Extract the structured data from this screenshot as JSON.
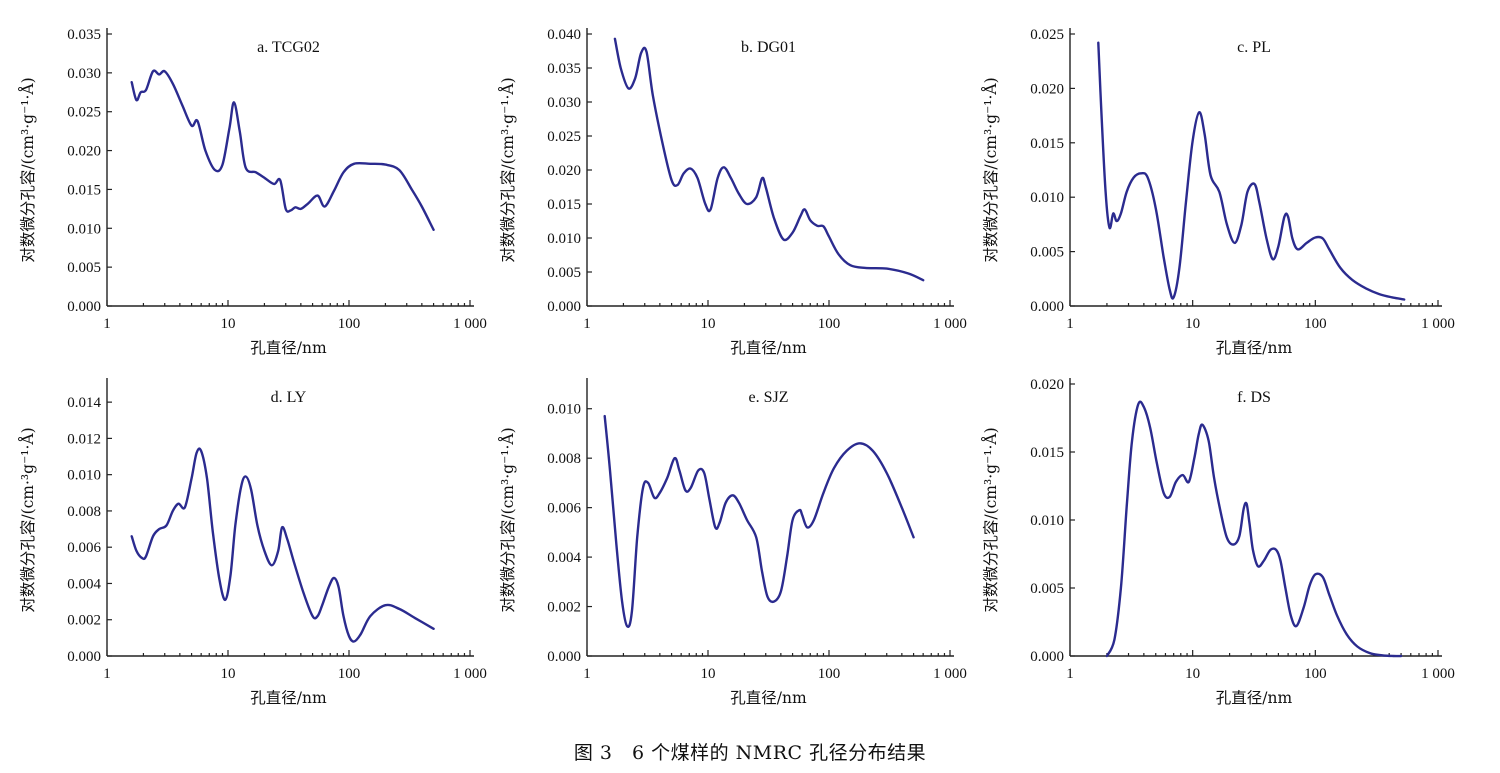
{
  "caption": "图 3　6 个煤样的 NMRC 孔径分布结果",
  "chart_data": [
    {
      "type": "line",
      "title": "a. TCG02",
      "xlabel": "孔直径/nm",
      "ylabel": "对数微分孔容/(cm³·g⁻¹·Å)",
      "xscale": "log",
      "xlim": [
        1,
        1000
      ],
      "xticks": [
        1,
        10,
        100,
        1000
      ],
      "xticklabels": [
        "1",
        "10",
        "100",
        "1 000"
      ],
      "ylim": [
        0,
        0.035
      ],
      "yticks": [
        0,
        0.005,
        0.01,
        0.015,
        0.02,
        0.025,
        0.03,
        0.035
      ],
      "yticklabels": [
        "0.000",
        "0.005",
        "0.010",
        "0.015",
        "0.020",
        "0.025",
        "0.030",
        "0.035"
      ],
      "series": [
        {
          "name": "TCG02",
          "x": [
            1.6,
            1.75,
            1.9,
            2.1,
            2.4,
            2.7,
            3.0,
            3.5,
            4.2,
            5.0,
            5.6,
            6.5,
            7.8,
            9.0,
            10.3,
            11.2,
            12.5,
            14,
            17,
            20,
            24,
            27,
            30,
            33,
            36,
            40,
            46,
            55,
            63,
            75,
            90,
            110,
            150,
            200,
            260,
            330,
            400,
            500
          ],
          "y": [
            0.0288,
            0.0265,
            0.0275,
            0.0278,
            0.0302,
            0.0298,
            0.0302,
            0.0286,
            0.0258,
            0.0232,
            0.0238,
            0.02,
            0.0175,
            0.0182,
            0.023,
            0.0262,
            0.0225,
            0.0178,
            0.0172,
            0.0165,
            0.0157,
            0.0162,
            0.0125,
            0.0123,
            0.0127,
            0.0125,
            0.0132,
            0.0142,
            0.0128,
            0.0148,
            0.0172,
            0.0183,
            0.0183,
            0.0182,
            0.0175,
            0.015,
            0.0128,
            0.0098
          ]
        }
      ]
    },
    {
      "type": "line",
      "title": "b. DG01",
      "xlabel": "孔直径/nm",
      "ylabel": "对数微分孔容/(cm³·g⁻¹·Å)",
      "xscale": "log",
      "xlim": [
        1,
        1000
      ],
      "xticks": [
        1,
        10,
        100,
        1000
      ],
      "xticklabels": [
        "1",
        "10",
        "100",
        "1 000"
      ],
      "ylim": [
        0,
        0.04
      ],
      "yticks": [
        0,
        0.005,
        0.01,
        0.015,
        0.02,
        0.025,
        0.03,
        0.035,
        0.04
      ],
      "yticklabels": [
        "0.000",
        "0.005",
        "0.010",
        "0.015",
        "0.020",
        "0.025",
        "0.030",
        "0.035",
        "0.040"
      ],
      "series": [
        {
          "name": "DG01",
          "x": [
            1.7,
            1.9,
            2.2,
            2.5,
            2.8,
            3.1,
            3.5,
            4.2,
            5.0,
            5.6,
            6.3,
            7.2,
            8.2,
            9.5,
            10.5,
            12,
            13.5,
            15.5,
            18,
            21,
            25,
            28,
            30,
            35,
            42,
            50,
            58,
            63,
            70,
            80,
            90,
            100,
            120,
            150,
            200,
            300,
            450,
            600
          ],
          "y": [
            0.0393,
            0.035,
            0.032,
            0.0335,
            0.0372,
            0.0374,
            0.031,
            0.024,
            0.0185,
            0.0178,
            0.0195,
            0.0202,
            0.0188,
            0.015,
            0.0142,
            0.0188,
            0.0204,
            0.0188,
            0.0165,
            0.015,
            0.016,
            0.0188,
            0.0175,
            0.013,
            0.0098,
            0.0108,
            0.0132,
            0.0142,
            0.0126,
            0.0118,
            0.0117,
            0.0102,
            0.0076,
            0.006,
            0.0056,
            0.0055,
            0.0048,
            0.0038
          ]
        }
      ]
    },
    {
      "type": "line",
      "title": "c. PL",
      "xlabel": "孔直径/nm",
      "ylabel": "对数微分孔容/(cm³·g⁻¹·Å)",
      "xscale": "log",
      "xlim": [
        1,
        1000
      ],
      "xticks": [
        1,
        10,
        100,
        1000
      ],
      "xticklabels": [
        "1",
        "10",
        "100",
        "1 000"
      ],
      "ylim": [
        0,
        0.025
      ],
      "yticks": [
        0,
        0.005,
        0.01,
        0.015,
        0.02,
        0.025
      ],
      "yticklabels": [
        "0.000",
        "0.005",
        "0.010",
        "0.015",
        "0.020",
        "0.025"
      ],
      "series": [
        {
          "name": "PL",
          "x": [
            1.7,
            1.8,
            1.95,
            2.1,
            2.25,
            2.4,
            2.6,
            2.9,
            3.3,
            3.8,
            4.3,
            5.0,
            5.8,
            6.5,
            7.0,
            7.8,
            8.8,
            10,
            11.3,
            12.5,
            14,
            16.5,
            19,
            22,
            25,
            28,
            32,
            35,
            40,
            45,
            50,
            56,
            60,
            65,
            72,
            85,
            100,
            115,
            130,
            160,
            200,
            260,
            330,
            420,
            530
          ],
          "y": [
            0.0242,
            0.018,
            0.0105,
            0.0072,
            0.0085,
            0.0078,
            0.0085,
            0.0105,
            0.0118,
            0.0122,
            0.0118,
            0.009,
            0.0045,
            0.0015,
            0.0008,
            0.0035,
            0.0095,
            0.0152,
            0.0178,
            0.0158,
            0.012,
            0.0105,
            0.0075,
            0.0058,
            0.0075,
            0.0105,
            0.0112,
            0.0095,
            0.0062,
            0.0043,
            0.0055,
            0.0082,
            0.0082,
            0.0062,
            0.0052,
            0.0058,
            0.0063,
            0.0062,
            0.0052,
            0.0035,
            0.0024,
            0.0016,
            0.0011,
            0.0008,
            0.0006
          ]
        }
      ]
    },
    {
      "type": "line",
      "title": "d. LY",
      "xlabel": "孔直径/nm",
      "ylabel": "对数微分孔容/(cm·³g⁻¹·Å)",
      "xscale": "log",
      "xlim": [
        1,
        1000
      ],
      "xticks": [
        1,
        10,
        100,
        1000
      ],
      "xticklabels": [
        "1",
        "10",
        "100",
        "1 000"
      ],
      "ylim": [
        0,
        0.015
      ],
      "yticks": [
        0,
        0.002,
        0.004,
        0.006,
        0.008,
        0.01,
        0.012,
        0.014
      ],
      "yticklabels": [
        "0.000",
        "0.002",
        "0.004",
        "0.006",
        "0.008",
        "0.010",
        "0.012",
        "0.014"
      ],
      "series": [
        {
          "name": "LY",
          "x": [
            1.6,
            1.75,
            1.95,
            2.1,
            2.4,
            2.7,
            3.1,
            3.5,
            3.9,
            4.4,
            5.0,
            5.5,
            6.0,
            6.7,
            7.5,
            8.5,
            9.5,
            10.5,
            11.5,
            12.8,
            14,
            15.5,
            17.5,
            20,
            23,
            26,
            28,
            31,
            35,
            42,
            50,
            55,
            60,
            68,
            75,
            82,
            90,
            100,
            110,
            125,
            150,
            200,
            260,
            350,
            500
          ],
          "y": [
            0.0066,
            0.0058,
            0.0054,
            0.0055,
            0.0066,
            0.007,
            0.0072,
            0.008,
            0.0084,
            0.0082,
            0.0098,
            0.0112,
            0.0113,
            0.0098,
            0.0068,
            0.0042,
            0.0031,
            0.0045,
            0.0072,
            0.0093,
            0.0099,
            0.0092,
            0.0072,
            0.0058,
            0.005,
            0.0058,
            0.0071,
            0.0064,
            0.0052,
            0.0035,
            0.0022,
            0.0022,
            0.0028,
            0.0038,
            0.0043,
            0.0038,
            0.0022,
            0.0011,
            0.0008,
            0.0012,
            0.0022,
            0.0028,
            0.0026,
            0.0021,
            0.0015
          ]
        }
      ]
    },
    {
      "type": "line",
      "title": "e. SJZ",
      "xlabel": "孔直径/nm",
      "ylabel": "对数微分孔容/(cm³·g⁻¹·Å)",
      "xscale": "log",
      "xlim": [
        1,
        1000
      ],
      "xticks": [
        1,
        10,
        100,
        1000
      ],
      "xticklabels": [
        "1",
        "10",
        "100",
        "1 000"
      ],
      "ylim": [
        0,
        0.011
      ],
      "yticks": [
        0,
        0.002,
        0.004,
        0.006,
        0.008,
        0.01
      ],
      "yticklabels": [
        "0.000",
        "0.002",
        "0.004",
        "0.006",
        "0.008",
        "0.010"
      ],
      "series": [
        {
          "name": "SJZ",
          "x": [
            1.4,
            1.55,
            1.75,
            1.95,
            2.15,
            2.35,
            2.6,
            2.9,
            3.2,
            3.6,
            4.0,
            4.6,
            5.3,
            5.8,
            6.5,
            7.2,
            8.3,
            9.3,
            10.3,
            11.5,
            12.5,
            14,
            16,
            18,
            21,
            25,
            28,
            31,
            35,
            40,
            45,
            50,
            57,
            60,
            66,
            75,
            90,
            110,
            140,
            180,
            230,
            300,
            400,
            500
          ],
          "y": [
            0.0097,
            0.0075,
            0.0045,
            0.0022,
            0.0012,
            0.0018,
            0.0048,
            0.0068,
            0.007,
            0.0064,
            0.0066,
            0.0072,
            0.008,
            0.0075,
            0.0067,
            0.0068,
            0.0075,
            0.0074,
            0.0063,
            0.0052,
            0.0054,
            0.0062,
            0.0065,
            0.0062,
            0.0055,
            0.0048,
            0.0034,
            0.0024,
            0.0022,
            0.0026,
            0.004,
            0.0055,
            0.0059,
            0.0057,
            0.0052,
            0.0055,
            0.0066,
            0.0076,
            0.0083,
            0.0086,
            0.0083,
            0.0074,
            0.006,
            0.0048
          ]
        }
      ]
    },
    {
      "type": "line",
      "title": "f. DS",
      "xlabel": "孔直径/nm",
      "ylabel": "对数微分孔容/(cm³·g⁻¹·Å)",
      "xscale": "log",
      "xlim": [
        1,
        1000
      ],
      "xticks": [
        1,
        10,
        100,
        1000
      ],
      "xticklabels": [
        "1",
        "10",
        "100",
        "1 000"
      ],
      "ylim": [
        0,
        0.02
      ],
      "yticks": [
        0,
        0.005,
        0.01,
        0.015,
        0.02
      ],
      "yticklabels": [
        "0.000",
        "0.005",
        "0.010",
        "0.015",
        "0.020"
      ],
      "series": [
        {
          "name": "DS",
          "x": [
            2.0,
            2.3,
            2.6,
            2.9,
            3.2,
            3.6,
            4.0,
            4.5,
            5.1,
            5.8,
            6.5,
            7.3,
            8.3,
            9.3,
            10.3,
            11.2,
            12,
            13.5,
            15,
            17,
            19,
            21.5,
            24,
            26,
            27.5,
            29,
            31,
            34,
            38,
            43,
            48,
            52,
            57,
            63,
            70,
            80,
            90,
            100,
            115,
            130,
            150,
            180,
            220,
            280,
            350,
            430,
            500
          ],
          "y": [
            0.0,
            0.0012,
            0.005,
            0.011,
            0.0158,
            0.0185,
            0.0183,
            0.0168,
            0.0142,
            0.012,
            0.0117,
            0.0128,
            0.0133,
            0.0128,
            0.0145,
            0.0163,
            0.017,
            0.0158,
            0.013,
            0.0105,
            0.0087,
            0.0082,
            0.0088,
            0.0108,
            0.0112,
            0.0098,
            0.0078,
            0.0066,
            0.007,
            0.0078,
            0.0078,
            0.007,
            0.005,
            0.003,
            0.0022,
            0.0035,
            0.0052,
            0.006,
            0.0058,
            0.0045,
            0.003,
            0.0016,
            0.0007,
            0.0002,
            5e-05,
            0.0,
            0.0
          ]
        }
      ]
    }
  ]
}
